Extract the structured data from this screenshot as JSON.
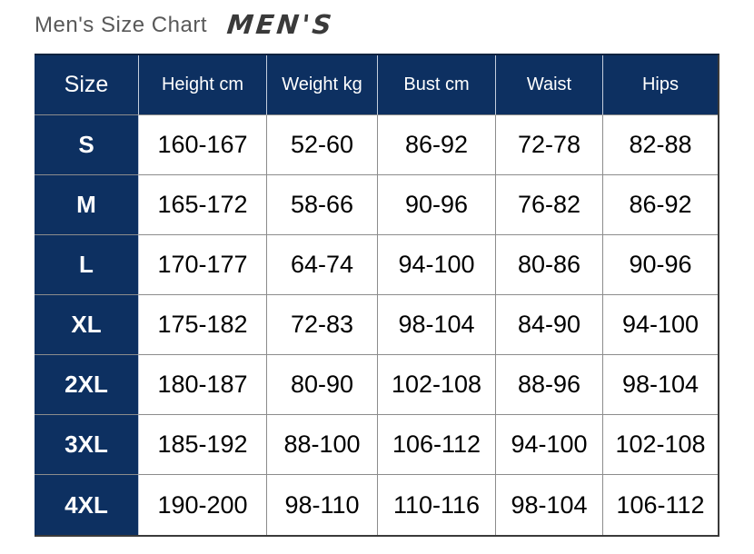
{
  "header": {
    "title": "Men's Size Chart",
    "logo": "MEN'S"
  },
  "chart_data": {
    "type": "table",
    "title": "Men's Size Chart",
    "columns": [
      "Size",
      "Height cm",
      "Weight kg",
      "Bust cm",
      "Waist",
      "Hips"
    ],
    "rows": [
      [
        "S",
        "160-167",
        "52-60",
        "86-92",
        "72-78",
        "82-88"
      ],
      [
        "M",
        "165-172",
        "58-66",
        "90-96",
        "76-82",
        "86-92"
      ],
      [
        "L",
        "170-177",
        "64-74",
        "94-100",
        "80-86",
        "90-96"
      ],
      [
        "XL",
        "175-182",
        "72-83",
        "98-104",
        "84-90",
        "94-100"
      ],
      [
        "2XL",
        "180-187",
        "80-90",
        "102-108",
        "88-96",
        "98-104"
      ],
      [
        "3XL",
        "185-192",
        "88-100",
        "106-112",
        "94-100",
        "102-108"
      ],
      [
        "4XL",
        "190-200",
        "98-110",
        "110-116",
        "98-104",
        "106-112"
      ]
    ]
  },
  "colors": {
    "navy_header_bg": "#0d3061",
    "grid_line": "#8c8c8c",
    "title_text": "#595959",
    "logo_text": "#3a3a3a",
    "header_text": "#ffffff",
    "cell_text": "#000000"
  }
}
